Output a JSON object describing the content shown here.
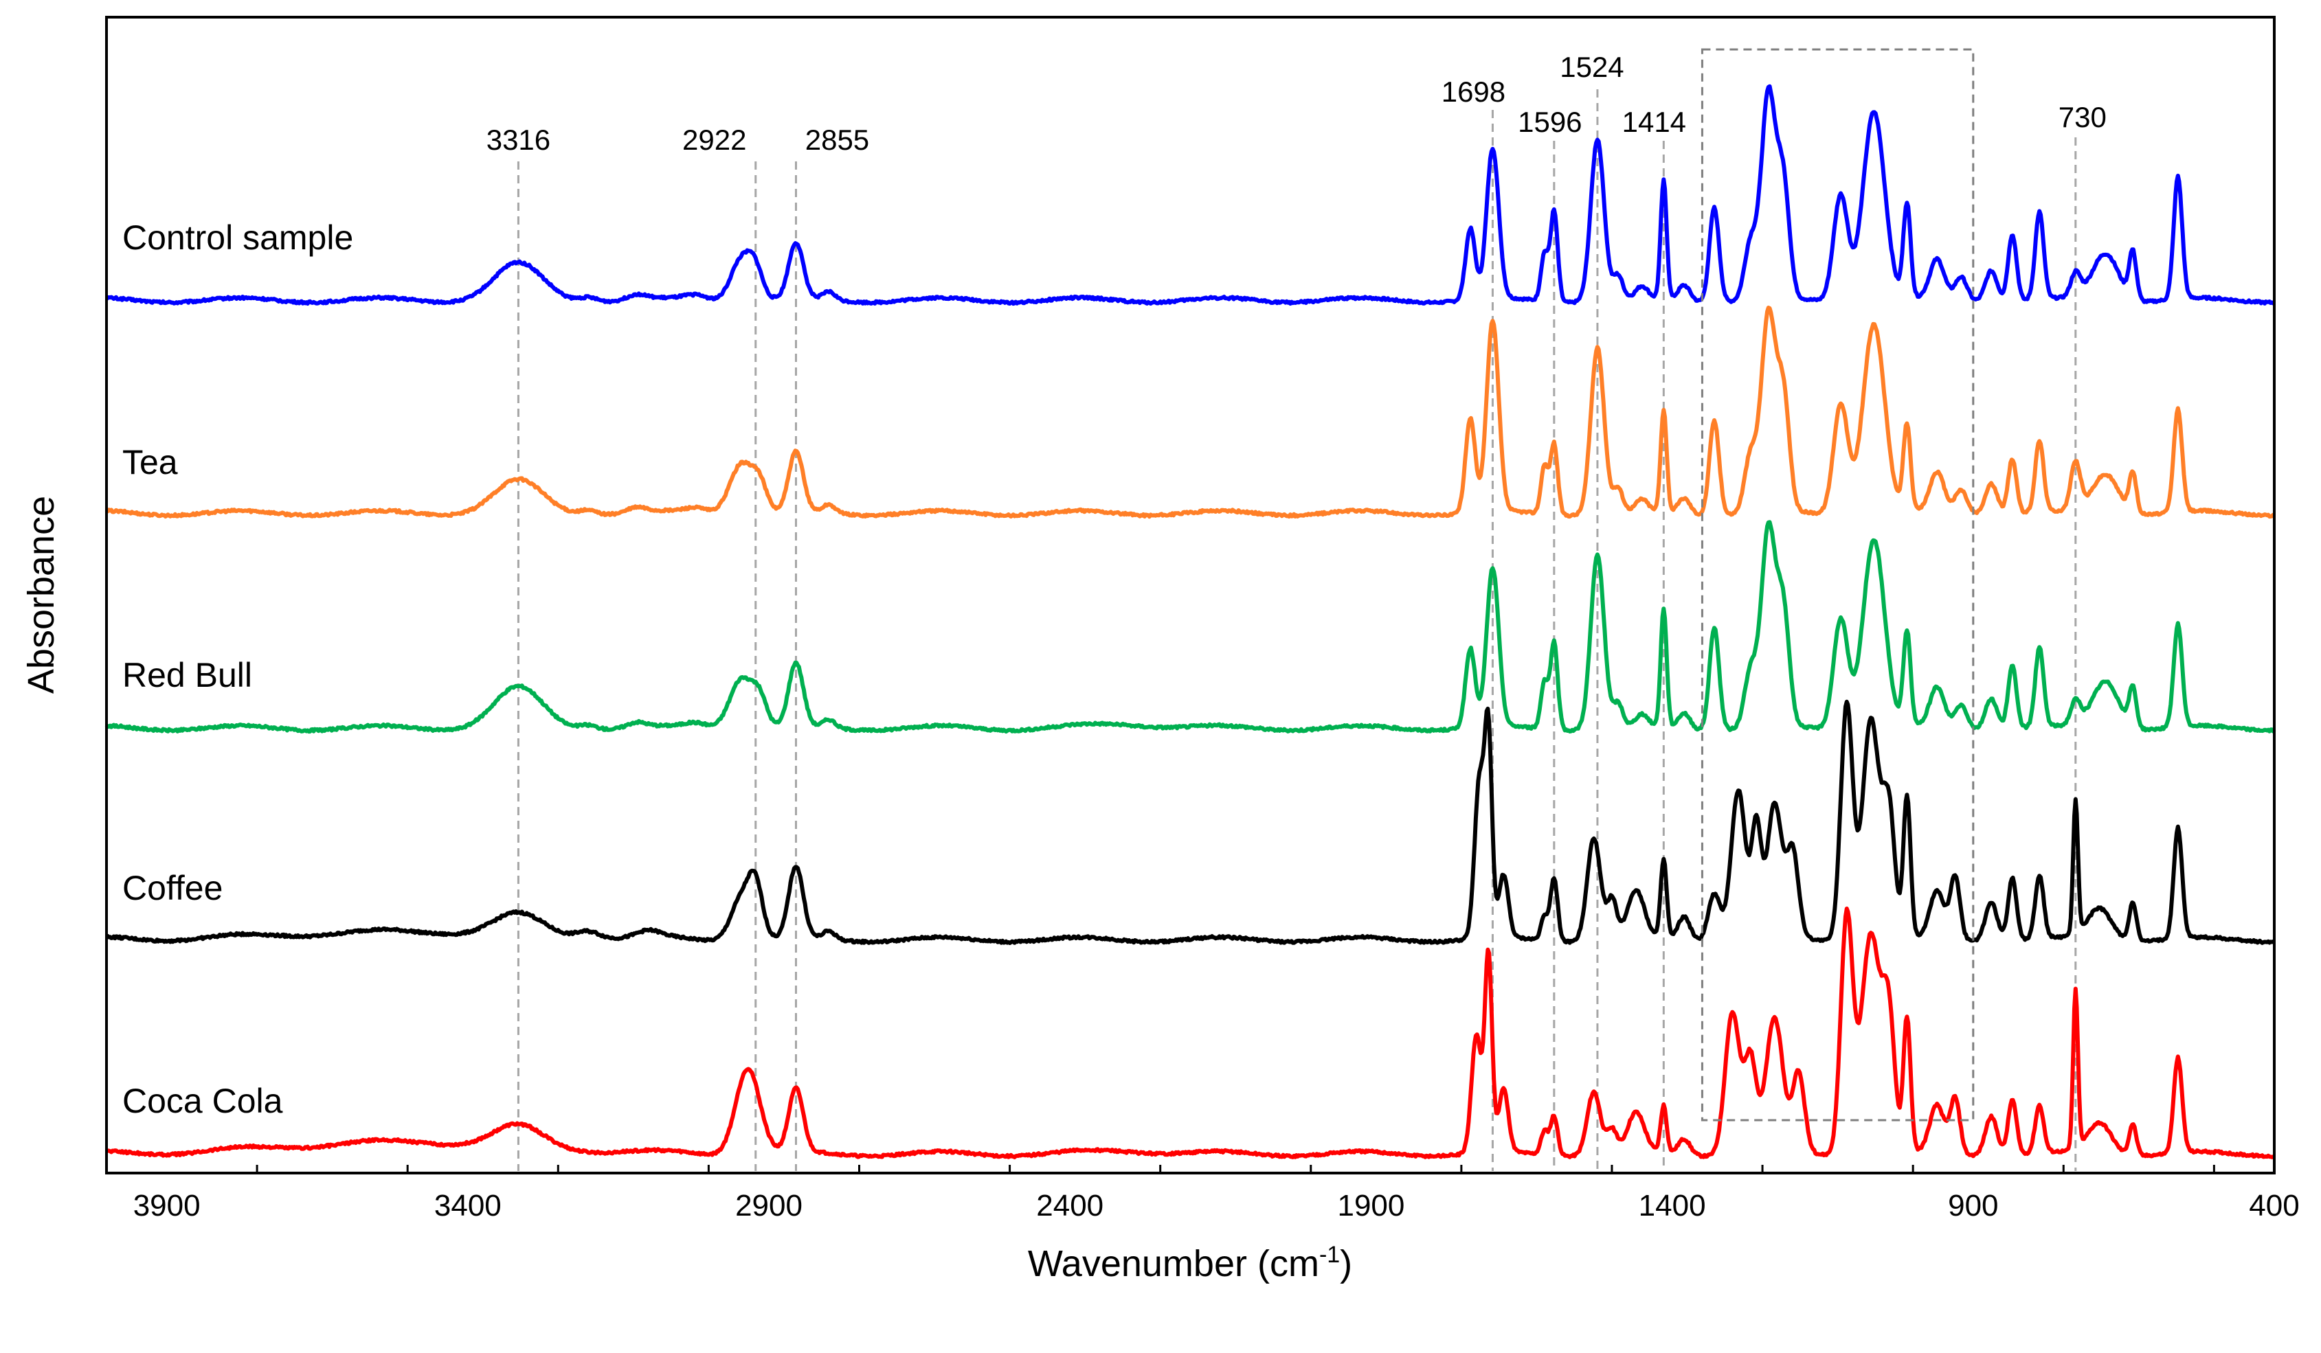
{
  "chart_data": {
    "type": "line",
    "title": "",
    "xlabel": "Wavenumber (cm",
    "xlabel_sup": "-1",
    "xlabel_suffix": ")",
    "ylabel": "Absorbance",
    "xlim": [
      4000,
      400
    ],
    "x_reversed": true,
    "xticks": [
      3900,
      3400,
      2900,
      2400,
      1900,
      1400,
      900,
      400
    ],
    "grid": false,
    "peak_markers": [
      3316,
      2922,
      2855,
      1698,
      1596,
      1524,
      1414,
      730
    ],
    "highlight_region": [
      1350,
      900
    ],
    "series": [
      {
        "name": "Control sample",
        "color": "#0000ff",
        "baseline": 0.955,
        "peaks": [
          [
            3316,
            0.045,
            40
          ],
          [
            3200,
            0.006,
            15
          ],
          [
            3120,
            0.006,
            15
          ],
          [
            3020,
            0.007,
            20
          ],
          [
            2945,
            0.055,
            18
          ],
          [
            2922,
            0.03,
            12
          ],
          [
            2855,
            0.07,
            12
          ],
          [
            2800,
            0.01,
            10
          ],
          [
            1735,
            0.09,
            8
          ],
          [
            1698,
            0.19,
            10
          ],
          [
            1612,
            0.06,
            6
          ],
          [
            1596,
            0.115,
            6
          ],
          [
            1524,
            0.205,
            11
          ],
          [
            1490,
            0.03,
            8
          ],
          [
            1450,
            0.015,
            10
          ],
          [
            1414,
            0.15,
            5
          ],
          [
            1380,
            0.02,
            10
          ],
          [
            1330,
            0.12,
            8
          ],
          [
            1270,
            0.07,
            10
          ],
          [
            1240,
            0.26,
            12
          ],
          [
            1215,
            0.14,
            10
          ],
          [
            1120,
            0.135,
            12
          ],
          [
            1065,
            0.24,
            18
          ],
          [
            1010,
            0.12,
            6
          ],
          [
            960,
            0.05,
            12
          ],
          [
            920,
            0.03,
            10
          ],
          [
            870,
            0.04,
            10
          ],
          [
            835,
            0.085,
            7
          ],
          [
            790,
            0.11,
            7
          ],
          [
            730,
            0.03,
            8
          ],
          [
            680,
            0.06,
            22
          ],
          [
            635,
            0.06,
            6
          ],
          [
            560,
            0.155,
            7
          ]
        ]
      },
      {
        "name": "Tea",
        "color": "#ff7f27",
        "baseline": 0.955,
        "peaks": [
          [
            3316,
            0.04,
            40
          ],
          [
            3200,
            0.006,
            15
          ],
          [
            3120,
            0.006,
            15
          ],
          [
            3020,
            0.007,
            20
          ],
          [
            2945,
            0.065,
            20
          ],
          [
            2915,
            0.03,
            12
          ],
          [
            2855,
            0.075,
            12
          ],
          [
            2800,
            0.01,
            10
          ],
          [
            1735,
            0.12,
            8
          ],
          [
            1698,
            0.24,
            10
          ],
          [
            1612,
            0.06,
            6
          ],
          [
            1596,
            0.09,
            6
          ],
          [
            1524,
            0.21,
            11
          ],
          [
            1490,
            0.03,
            8
          ],
          [
            1450,
            0.015,
            10
          ],
          [
            1414,
            0.13,
            5
          ],
          [
            1380,
            0.02,
            10
          ],
          [
            1330,
            0.12,
            8
          ],
          [
            1270,
            0.07,
            10
          ],
          [
            1240,
            0.25,
            12
          ],
          [
            1215,
            0.14,
            10
          ],
          [
            1120,
            0.14,
            12
          ],
          [
            1065,
            0.24,
            18
          ],
          [
            1010,
            0.11,
            6
          ],
          [
            960,
            0.05,
            12
          ],
          [
            920,
            0.03,
            10
          ],
          [
            870,
            0.04,
            10
          ],
          [
            835,
            0.07,
            7
          ],
          [
            790,
            0.09,
            7
          ],
          [
            730,
            0.06,
            8
          ],
          [
            680,
            0.05,
            22
          ],
          [
            635,
            0.05,
            6
          ],
          [
            560,
            0.13,
            7
          ]
        ]
      },
      {
        "name": "Red Bull",
        "color": "#00b050",
        "baseline": 0.955,
        "peaks": [
          [
            3316,
            0.05,
            40
          ],
          [
            3200,
            0.006,
            15
          ],
          [
            3120,
            0.006,
            15
          ],
          [
            3020,
            0.007,
            20
          ],
          [
            2945,
            0.065,
            20
          ],
          [
            2915,
            0.03,
            12
          ],
          [
            2855,
            0.08,
            12
          ],
          [
            2800,
            0.01,
            10
          ],
          [
            2300,
            0.005,
            60
          ],
          [
            1735,
            0.1,
            8
          ],
          [
            1698,
            0.2,
            10
          ],
          [
            1612,
            0.06,
            6
          ],
          [
            1596,
            0.11,
            6
          ],
          [
            1524,
            0.22,
            11
          ],
          [
            1490,
            0.03,
            8
          ],
          [
            1450,
            0.015,
            10
          ],
          [
            1414,
            0.15,
            5
          ],
          [
            1380,
            0.02,
            10
          ],
          [
            1330,
            0.13,
            8
          ],
          [
            1270,
            0.07,
            10
          ],
          [
            1240,
            0.25,
            12
          ],
          [
            1215,
            0.14,
            10
          ],
          [
            1120,
            0.14,
            12
          ],
          [
            1065,
            0.24,
            18
          ],
          [
            1010,
            0.12,
            6
          ],
          [
            960,
            0.05,
            12
          ],
          [
            920,
            0.03,
            10
          ],
          [
            870,
            0.04,
            10
          ],
          [
            835,
            0.08,
            7
          ],
          [
            790,
            0.1,
            7
          ],
          [
            730,
            0.03,
            8
          ],
          [
            680,
            0.06,
            22
          ],
          [
            635,
            0.05,
            6
          ],
          [
            560,
            0.13,
            7
          ]
        ]
      },
      {
        "name": "Coffee",
        "color": "#000000",
        "baseline": 0.955,
        "peaks": [
          [
            3316,
            0.025,
            40
          ],
          [
            3500,
            0.01,
            200
          ],
          [
            3200,
            0.01,
            20
          ],
          [
            3100,
            0.008,
            20
          ],
          [
            2945,
            0.055,
            18
          ],
          [
            2922,
            0.06,
            12
          ],
          [
            2855,
            0.09,
            12
          ],
          [
            2800,
            0.01,
            10
          ],
          [
            1720,
            0.2,
            8
          ],
          [
            1705,
            0.25,
            6
          ],
          [
            1680,
            0.08,
            8
          ],
          [
            1612,
            0.03,
            6
          ],
          [
            1596,
            0.08,
            6
          ],
          [
            1530,
            0.13,
            11
          ],
          [
            1500,
            0.05,
            8
          ],
          [
            1460,
            0.06,
            14
          ],
          [
            1414,
            0.1,
            5
          ],
          [
            1380,
            0.03,
            10
          ],
          [
            1330,
            0.06,
            10
          ],
          [
            1290,
            0.19,
            12
          ],
          [
            1260,
            0.14,
            8
          ],
          [
            1230,
            0.17,
            12
          ],
          [
            1200,
            0.11,
            10
          ],
          [
            1110,
            0.3,
            10
          ],
          [
            1070,
            0.28,
            14
          ],
          [
            1040,
            0.16,
            10
          ],
          [
            1010,
            0.18,
            6
          ],
          [
            960,
            0.06,
            12
          ],
          [
            930,
            0.08,
            8
          ],
          [
            870,
            0.05,
            10
          ],
          [
            835,
            0.08,
            7
          ],
          [
            790,
            0.08,
            7
          ],
          [
            730,
            0.17,
            4
          ],
          [
            690,
            0.04,
            20
          ],
          [
            635,
            0.05,
            6
          ],
          [
            560,
            0.14,
            7
          ]
        ]
      },
      {
        "name": "Coca Cola",
        "color": "#ff0000",
        "baseline": 0.955,
        "peaks": [
          [
            3316,
            0.025,
            40
          ],
          [
            3500,
            0.015,
            200
          ],
          [
            2935,
            0.11,
            20
          ],
          [
            2855,
            0.08,
            12
          ],
          [
            2300,
            0.004,
            60
          ],
          [
            1725,
            0.15,
            8
          ],
          [
            1705,
            0.25,
            6
          ],
          [
            1680,
            0.08,
            8
          ],
          [
            1612,
            0.03,
            6
          ],
          [
            1596,
            0.05,
            6
          ],
          [
            1530,
            0.08,
            11
          ],
          [
            1500,
            0.03,
            8
          ],
          [
            1460,
            0.05,
            14
          ],
          [
            1414,
            0.06,
            5
          ],
          [
            1380,
            0.02,
            10
          ],
          [
            1300,
            0.18,
            12
          ],
          [
            1270,
            0.12,
            10
          ],
          [
            1230,
            0.17,
            14
          ],
          [
            1190,
            0.1,
            10
          ],
          [
            1110,
            0.3,
            10
          ],
          [
            1070,
            0.28,
            16
          ],
          [
            1040,
            0.16,
            10
          ],
          [
            1010,
            0.17,
            6
          ],
          [
            960,
            0.06,
            12
          ],
          [
            930,
            0.07,
            8
          ],
          [
            870,
            0.05,
            10
          ],
          [
            835,
            0.07,
            7
          ],
          [
            790,
            0.06,
            7
          ],
          [
            730,
            0.2,
            4
          ],
          [
            690,
            0.04,
            20
          ],
          [
            635,
            0.04,
            6
          ],
          [
            560,
            0.12,
            7
          ]
        ]
      }
    ]
  }
}
